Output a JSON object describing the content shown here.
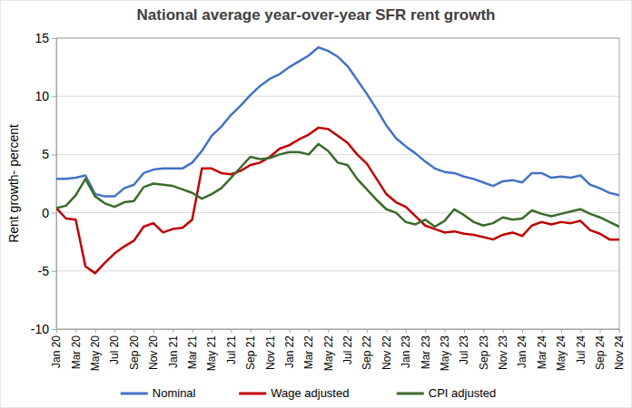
{
  "chart_data": {
    "type": "line",
    "title": "National average year-over-year SFR rent growth",
    "y_label": "Rent growth- percent",
    "categories": [
      "Jan 20",
      null,
      "Mar 20",
      null,
      "May 20",
      null,
      "Jul 20",
      null,
      "Sep 20",
      null,
      "Nov 20",
      null,
      "Jan 21",
      null,
      "Mar 21",
      null,
      "May 21",
      null,
      "Jul 21",
      null,
      "Sep 21",
      null,
      "Nov 21",
      null,
      "Jan 22",
      null,
      "Mar 22",
      null,
      "May 22",
      null,
      "Jul 22",
      null,
      "Sep 22",
      null,
      "Nov 22",
      null,
      "Jan 23",
      null,
      "Mar 23",
      null,
      "May 23",
      null,
      "Jul 23",
      null,
      "Sep 23",
      null,
      "Nov 23",
      null,
      "Jan 24",
      null,
      "Mar 24",
      null,
      "May 24",
      null,
      "Jul 24",
      null,
      "Sep 24",
      null,
      "Nov 24"
    ],
    "series": [
      {
        "name": "Nominal",
        "color": "#4472c4",
        "values": [
          2.9,
          2.9,
          3.0,
          3.2,
          1.6,
          1.4,
          1.4,
          2.1,
          2.4,
          3.4,
          3.7,
          3.8,
          3.8,
          3.8,
          4.3,
          5.3,
          6.6,
          7.4,
          8.4,
          9.2,
          10.1,
          10.9,
          11.5,
          11.9,
          12.5,
          13.0,
          13.5,
          14.2,
          13.9,
          13.4,
          12.6,
          11.4,
          10.2,
          8.9,
          7.5,
          6.4,
          5.7,
          5.1,
          4.4,
          3.8,
          3.5,
          3.4,
          3.1,
          2.9,
          2.6,
          2.3,
          2.7,
          2.8,
          2.6,
          3.4,
          3.4,
          3.0,
          3.1,
          3.0,
          3.2,
          2.4,
          2.1,
          1.7,
          1.5
        ]
      },
      {
        "name": "Wage adjusted",
        "color": "#c00000",
        "values": [
          0.4,
          -0.5,
          -0.6,
          -4.6,
          -5.2,
          -4.3,
          -3.5,
          -2.9,
          -2.4,
          -1.2,
          -0.9,
          -1.7,
          -1.4,
          -1.3,
          -0.6,
          3.8,
          3.8,
          3.4,
          3.3,
          3.6,
          4.1,
          4.3,
          4.8,
          5.5,
          5.8,
          6.3,
          6.7,
          7.3,
          7.2,
          6.6,
          6.0,
          5.0,
          4.2,
          2.9,
          1.6,
          0.9,
          0.5,
          -0.3,
          -1.1,
          -1.4,
          -1.7,
          -1.6,
          -1.8,
          -1.9,
          -2.1,
          -2.3,
          -1.9,
          -1.7,
          -2.0,
          -1.1,
          -0.8,
          -1.0,
          -0.8,
          -0.9,
          -0.7,
          -1.5,
          -1.8,
          -2.3,
          -2.3
        ]
      },
      {
        "name": "CPI adjusted",
        "color": "#3a6b2a",
        "values": [
          0.4,
          0.6,
          1.5,
          2.9,
          1.4,
          0.8,
          0.5,
          0.9,
          1.0,
          2.2,
          2.5,
          2.4,
          2.3,
          2.0,
          1.7,
          1.2,
          1.6,
          2.1,
          3.0,
          3.9,
          4.8,
          4.6,
          4.7,
          5.0,
          5.2,
          5.2,
          5.0,
          5.9,
          5.3,
          4.3,
          4.1,
          2.9,
          2.0,
          1.1,
          0.3,
          0.0,
          -0.8,
          -1.0,
          -0.6,
          -1.2,
          -0.7,
          0.3,
          -0.2,
          -0.8,
          -1.1,
          -0.9,
          -0.4,
          -0.6,
          -0.5,
          0.2,
          -0.1,
          -0.3,
          -0.1,
          0.1,
          0.3,
          -0.1,
          -0.4,
          -0.8,
          -1.2
        ]
      }
    ],
    "ylim": [
      -10,
      15
    ],
    "yticks": [
      -10,
      -5,
      0,
      5,
      10,
      15
    ],
    "grid": true,
    "legend": "bottom"
  }
}
